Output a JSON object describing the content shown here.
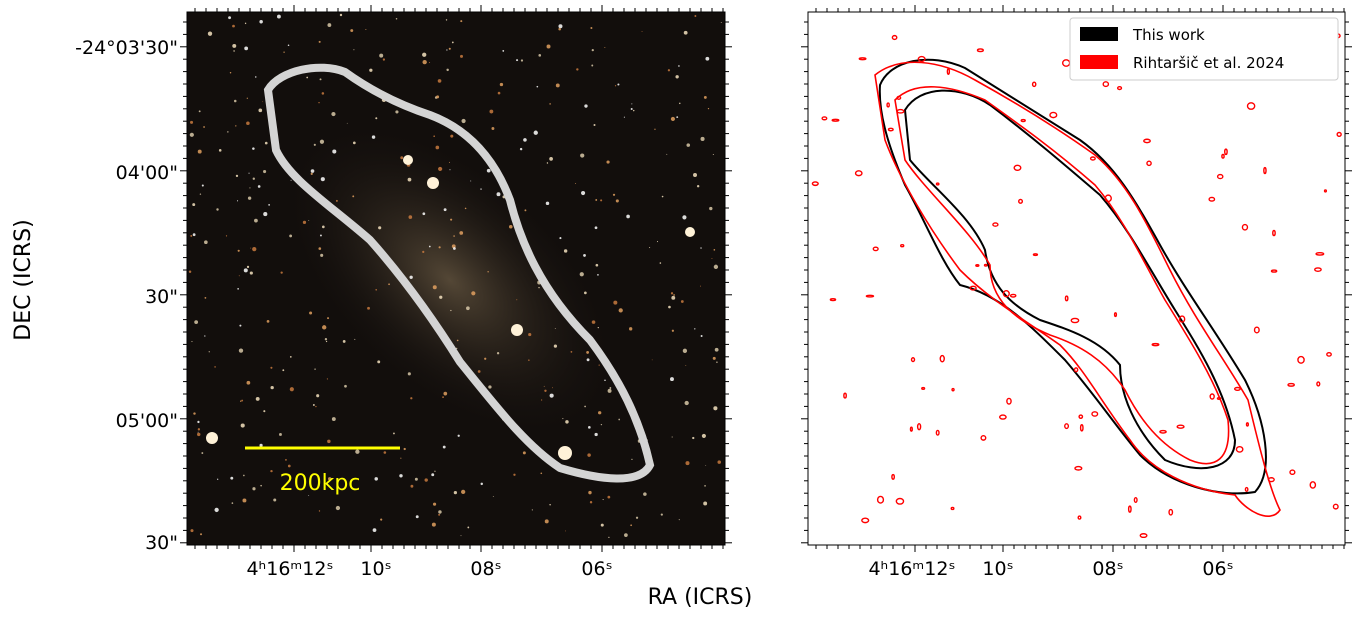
{
  "figure": {
    "x_label": "RA (ICRS)",
    "y_label": "DEC (ICRS)",
    "left_panel": {
      "y_tick_labels": [
        "-24°03'30\"",
        "04'00\"",
        "30\"",
        "05'00\"",
        "30\""
      ],
      "x_tick_labels": [
        "4ʰ16ᵐ12ˢ",
        "10ˢ",
        "08ˢ",
        "06ˢ"
      ],
      "scale_bar_label": "200kpc"
    },
    "right_panel": {
      "x_tick_labels": [
        "4ʰ16ᵐ12ˢ",
        "10ˢ",
        "08ˢ",
        "06ˢ"
      ],
      "legend": [
        {
          "label": "This work",
          "color": "#000000"
        },
        {
          "label": "Rihtaršič et al. 2024",
          "color": "#ff0000"
        }
      ]
    }
  }
}
